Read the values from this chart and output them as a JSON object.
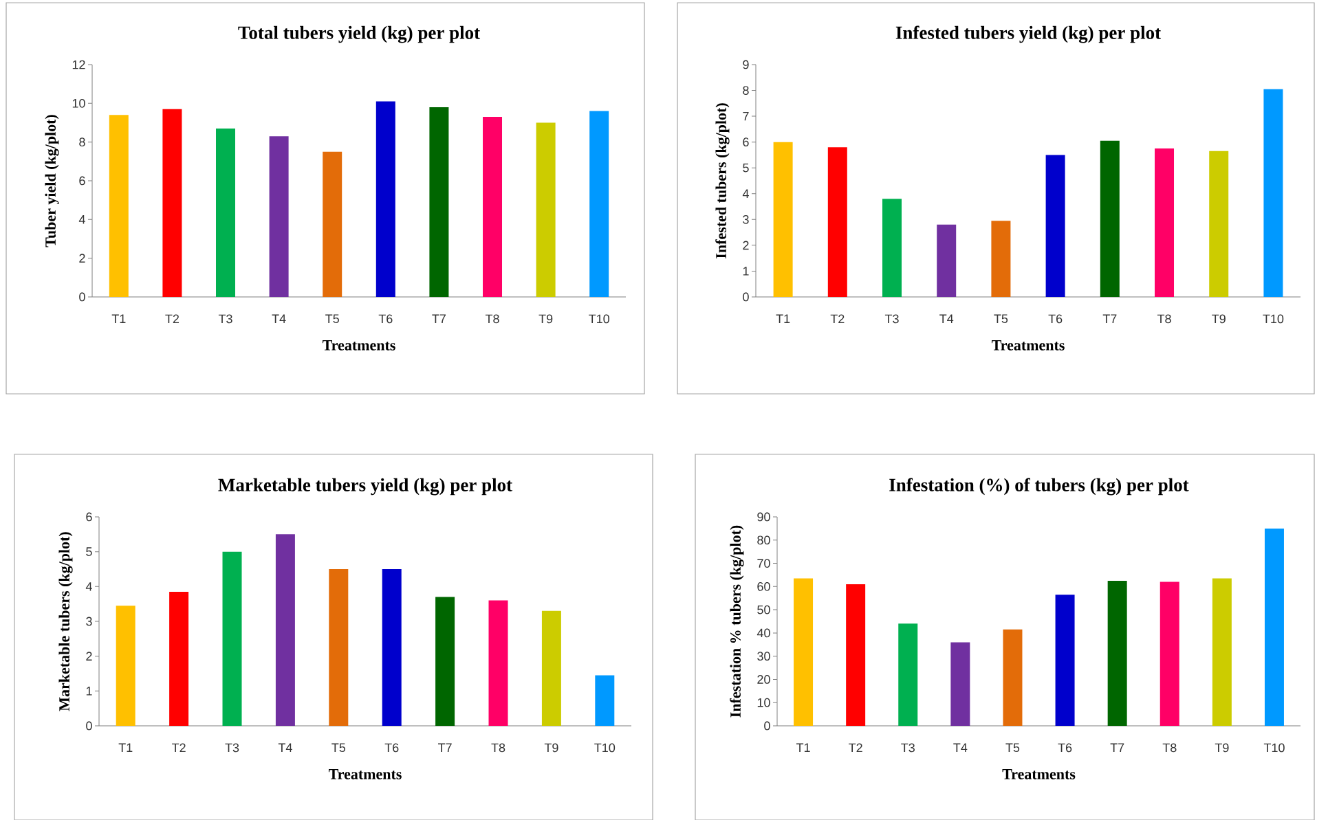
{
  "chart_data": [
    {
      "type": "bar",
      "title": "Total tubers yield (kg) per plot",
      "xlabel": "Treatments",
      "ylabel": "Tuber yield (kg/plot)",
      "categories": [
        "T1",
        "T2",
        "T3",
        "T4",
        "T5",
        "T6",
        "T7",
        "T8",
        "T9",
        "T10"
      ],
      "values": [
        9.4,
        9.7,
        8.7,
        8.3,
        7.5,
        10.1,
        9.8,
        9.3,
        9.0,
        9.6
      ],
      "colors": [
        "#ffc000",
        "#ff0000",
        "#00b050",
        "#7030a0",
        "#e36c09",
        "#0000cc",
        "#006600",
        "#ff0066",
        "#cccc00",
        "#0099ff"
      ],
      "ylim": [
        0,
        12
      ],
      "yticks": [
        0,
        2,
        4,
        6,
        8,
        10,
        12
      ]
    },
    {
      "type": "bar",
      "title": "Infested tubers yield (kg) per plot",
      "xlabel": "Treatments",
      "ylabel": "Infested tubers (kg/plot)",
      "categories": [
        "T1",
        "T2",
        "T3",
        "T4",
        "T5",
        "T6",
        "T7",
        "T8",
        "T9",
        "T10"
      ],
      "values": [
        6.0,
        5.8,
        3.8,
        2.8,
        2.95,
        5.5,
        6.05,
        5.75,
        5.65,
        8.05
      ],
      "colors": [
        "#ffc000",
        "#ff0000",
        "#00b050",
        "#7030a0",
        "#e36c09",
        "#0000cc",
        "#006600",
        "#ff0066",
        "#cccc00",
        "#0099ff"
      ],
      "ylim": [
        0,
        9
      ],
      "yticks": [
        0,
        1,
        2,
        3,
        4,
        5,
        6,
        7,
        8,
        9
      ]
    },
    {
      "type": "bar",
      "title": "Marketable tubers yield (kg) per plot",
      "xlabel": "Treatments",
      "ylabel": "Marketable tubers (kg/plot)",
      "categories": [
        "T1",
        "T2",
        "T3",
        "T4",
        "T5",
        "T6",
        "T7",
        "T8",
        "T9",
        "T10"
      ],
      "values": [
        3.45,
        3.85,
        5.0,
        5.5,
        4.5,
        4.5,
        3.7,
        3.6,
        3.3,
        1.45
      ],
      "colors": [
        "#ffc000",
        "#ff0000",
        "#00b050",
        "#7030a0",
        "#e36c09",
        "#0000cc",
        "#006600",
        "#ff0066",
        "#cccc00",
        "#0099ff"
      ],
      "ylim": [
        0,
        6
      ],
      "yticks": [
        0,
        1,
        2,
        3,
        4,
        5,
        6
      ]
    },
    {
      "type": "bar",
      "title": "Infestation (%) of tubers (kg) per plot",
      "xlabel": "Treatments",
      "ylabel": "Infestation % tubers (kg/plot)",
      "categories": [
        "T1",
        "T2",
        "T3",
        "T4",
        "T5",
        "T6",
        "T7",
        "T8",
        "T9",
        "T10"
      ],
      "values": [
        63.5,
        61,
        44,
        36,
        41.5,
        56.5,
        62.5,
        62,
        63.5,
        85
      ],
      "colors": [
        "#ffc000",
        "#ff0000",
        "#00b050",
        "#7030a0",
        "#e36c09",
        "#0000cc",
        "#006600",
        "#ff0066",
        "#cccc00",
        "#0099ff"
      ],
      "ylim": [
        0,
        90
      ],
      "yticks": [
        0,
        10,
        20,
        30,
        40,
        50,
        60,
        70,
        80,
        90
      ]
    }
  ]
}
